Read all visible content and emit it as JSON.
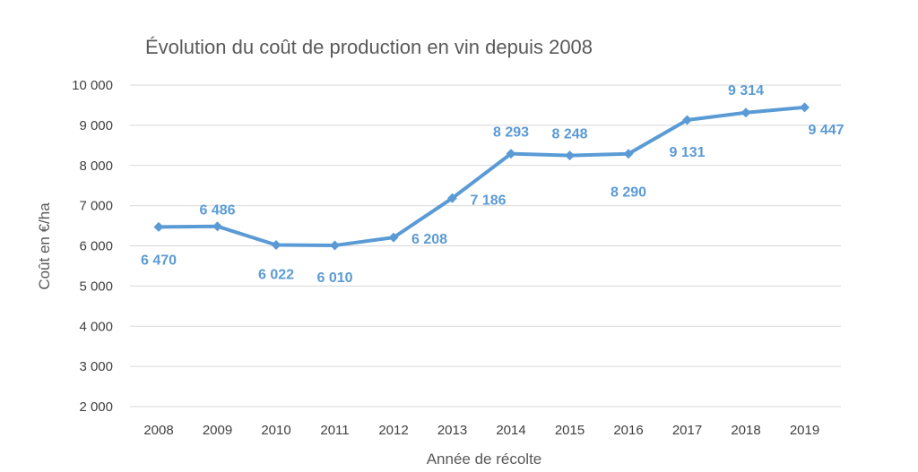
{
  "chart_data": {
    "type": "line",
    "title": "Évolution du coût de production en vin depuis 2008",
    "xlabel": "Année de récolte",
    "ylabel": "Coût en €/ha",
    "ylim": [
      2000,
      10000
    ],
    "yticks": [
      2000,
      3000,
      4000,
      5000,
      6000,
      7000,
      8000,
      9000,
      10000
    ],
    "ytick_labels": [
      "2 000",
      "3 000",
      "4 000",
      "5 000",
      "6 000",
      "7 000",
      "8 000",
      "9 000",
      "10 000"
    ],
    "grid": true,
    "legend": "none",
    "categories": [
      "2008",
      "2009",
      "2010",
      "2011",
      "2012",
      "2013",
      "2014",
      "2015",
      "2016",
      "2017",
      "2018",
      "2019"
    ],
    "series": [
      {
        "color": "#5b9bd5",
        "values": [
          6470,
          6486,
          6022,
          6010,
          6208,
          7186,
          8293,
          8248,
          8290,
          9131,
          9314,
          9447
        ],
        "labels": [
          "6 470",
          "6 486",
          "6 022",
          "6 010",
          "6 208",
          "7 186",
          "8 293",
          "8 248",
          "8 290",
          "9 131",
          "9 314",
          "9 447"
        ]
      }
    ]
  }
}
